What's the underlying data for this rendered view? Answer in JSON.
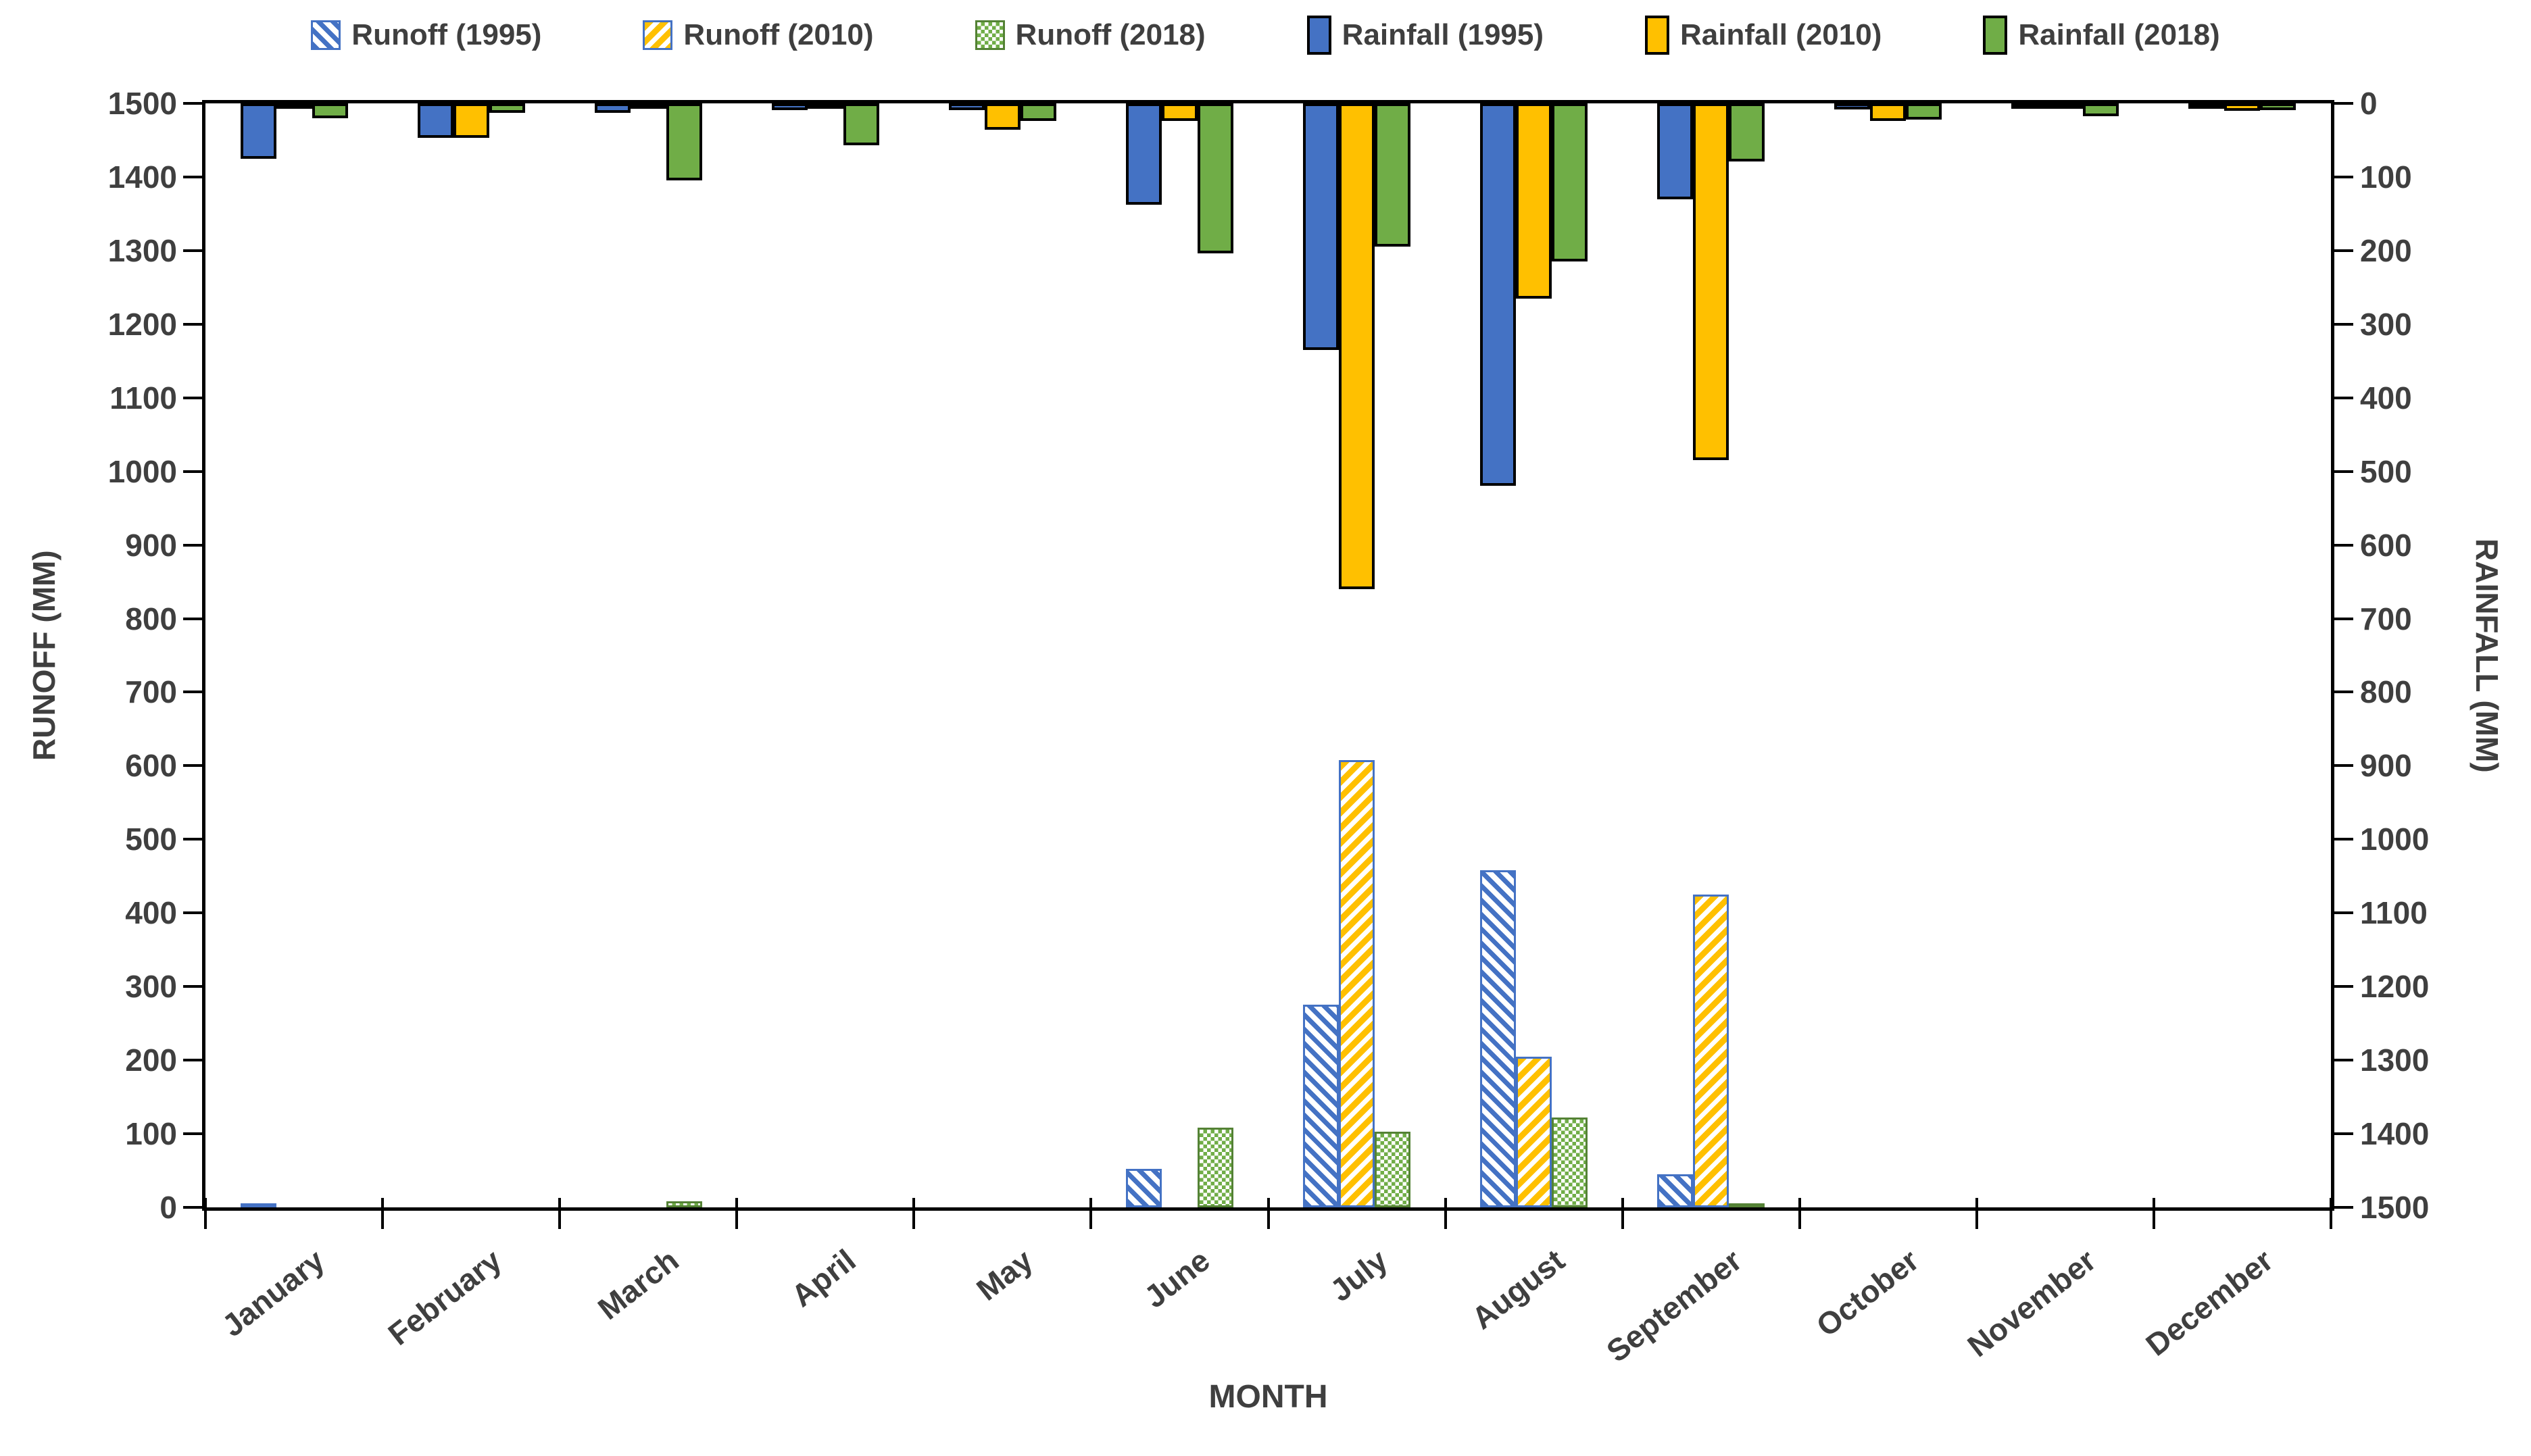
{
  "chart_data": {
    "type": "bar",
    "title": "",
    "xlabel": "MONTH",
    "categories": [
      "January",
      "February",
      "March",
      "April",
      "May",
      "June",
      "July",
      "August",
      "September",
      "October",
      "November",
      "December"
    ],
    "left_axis": {
      "label": "RUNOFF (MM)",
      "min": 0,
      "max": 1500,
      "step": 100,
      "tick_labels": [
        "1500",
        "1400",
        "1300",
        "1200",
        "1100",
        "1000",
        "900",
        "800",
        "700",
        "600",
        "500",
        "400",
        "300",
        "200",
        "100",
        "0"
      ]
    },
    "right_axis": {
      "label": "RAINFALL (MM)",
      "min": 0,
      "max": 1500,
      "step": 100,
      "inverted": true,
      "tick_labels": [
        "0",
        "100",
        "200",
        "300",
        "400",
        "500",
        "600",
        "700",
        "800",
        "900",
        "1000",
        "1100",
        "1200",
        "1300",
        "1400",
        "1500"
      ]
    },
    "legend_position": "top",
    "grid": false,
    "colors": {
      "blue": "#4472C4",
      "yellow": "#FFC000",
      "green": "#70AD47",
      "green_border": "#548235",
      "axis": "#000000",
      "text": "#3F3F3F"
    },
    "series": [
      {
        "name": "Runoff (1995)",
        "axis": "left",
        "kind": "runoff",
        "style": "hatch-blue",
        "color": "#4472C4",
        "values": [
          4,
          0,
          0,
          0,
          0,
          52,
          275,
          458,
          45,
          0,
          0,
          0
        ]
      },
      {
        "name": "Runoff (2010)",
        "axis": "left",
        "kind": "runoff",
        "style": "hatch-yellow",
        "color": "#FFC000",
        "values": [
          0,
          0,
          0,
          0,
          0,
          0,
          608,
          205,
          425,
          0,
          0,
          0
        ]
      },
      {
        "name": "Runoff (2018)",
        "axis": "left",
        "kind": "runoff",
        "style": "hatch-green",
        "color": "#70AD47",
        "values": [
          0,
          0,
          8,
          0,
          0,
          108,
          103,
          122,
          5,
          0,
          0,
          0
        ]
      },
      {
        "name": "Rainfall (1995)",
        "axis": "right",
        "kind": "rainfall",
        "style": "solid",
        "color": "#4472C4",
        "values": [
          75,
          47,
          13,
          9,
          9,
          138,
          335,
          520,
          130,
          8,
          4,
          4
        ]
      },
      {
        "name": "Rainfall (2010)",
        "axis": "right",
        "kind": "rainfall",
        "style": "solid",
        "color": "#FFC000",
        "values": [
          7,
          47,
          2,
          2,
          36,
          24,
          660,
          265,
          485,
          24,
          4,
          10
        ]
      },
      {
        "name": "Rainfall (2018)",
        "axis": "right",
        "kind": "rainfall",
        "style": "solid",
        "color": "#70AD47",
        "values": [
          20,
          13,
          105,
          57,
          24,
          204,
          195,
          215,
          79,
          22,
          17,
          9
        ]
      }
    ]
  }
}
